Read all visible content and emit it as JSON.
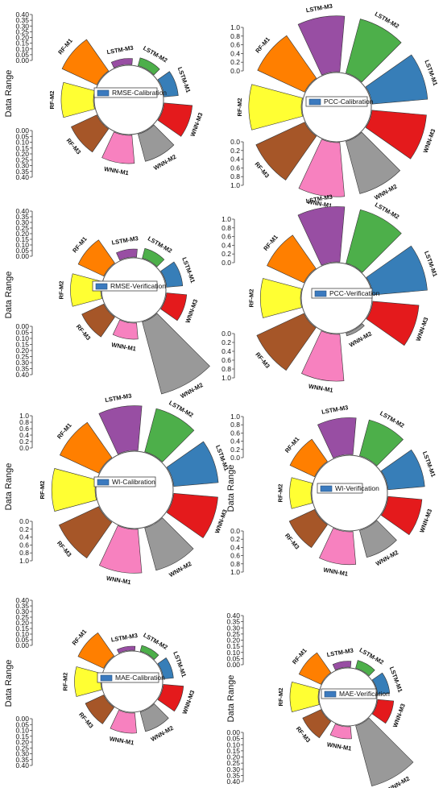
{
  "colors": {
    "LSTM-M3": "#984ea3",
    "LSTM-M2": "#4daf4a",
    "LSTM-M1": "#377eb8",
    "WNN-M3": "#e41a1c",
    "WNN-M2": "#999999",
    "WNN-M1": "#f781bf",
    "RF-M3": "#a65628",
    "RF-M2": "#ffff33",
    "RF-M1": "#ff7f00",
    "legend_swatch": "#3b7abf"
  },
  "chart_data": [
    {
      "type": "radial-bar",
      "legend": "RMSE-Calibration",
      "ylabel": "Data Range",
      "categories": [
        "LSTM-M3",
        "LSTM-M2",
        "LSTM-M1",
        "WNN-M3",
        "WNN-M2",
        "WNN-M1",
        "RF-M3",
        "RF-M2",
        "RF-M1"
      ],
      "values": [
        0.03,
        0.04,
        0.07,
        0.14,
        0.14,
        0.14,
        0.14,
        0.16,
        0.19
      ],
      "top_ticks": [
        "0.40",
        "0.35",
        "0.30",
        "0.25",
        "0.20",
        "0.15",
        "0.10",
        "0.05",
        "0.00"
      ],
      "bottom_ticks": [
        "0.00",
        "0.05",
        "0.10",
        "0.15",
        "0.20",
        "0.25",
        "0.30",
        "0.35",
        "0.40"
      ],
      "ylim": [
        0,
        0.4
      ]
    },
    {
      "type": "radial-bar",
      "legend": "PCC-Calibration",
      "ylabel": "",
      "categories": [
        "LSTM-M3",
        "LSTM-M2",
        "LSTM-M1",
        "WNN-M3",
        "WNN-M2",
        "WNN-M1",
        "RF-M3",
        "RF-M2",
        "RF-M1"
      ],
      "values": [
        0.99,
        0.99,
        0.99,
        0.97,
        0.96,
        0.96,
        0.95,
        0.93,
        0.92
      ],
      "top_ticks": [
        "1.0",
        "0.8",
        "0.6",
        "0.4",
        "0.2",
        "0.0"
      ],
      "bottom_ticks": [
        "0.0",
        "0.2",
        "0.4",
        "0.6",
        "0.8",
        "1.0"
      ],
      "ylim": [
        0,
        1.0
      ]
    },
    {
      "type": "radial-bar",
      "legend": "RMSE-Verification",
      "ylabel": "Data Range",
      "categories": [
        "LSTM-M3",
        "LSTM-M2",
        "LSTM-M1",
        "WNN-M3",
        "WNN-M2",
        "WNN-M1",
        "RF-M3",
        "RF-M2",
        "RF-M1"
      ],
      "values": [
        0.04,
        0.05,
        0.08,
        0.1,
        0.37,
        0.08,
        0.12,
        0.15,
        0.14
      ],
      "top_ticks": [
        "0.40",
        "0.35",
        "0.30",
        "0.25",
        "0.20",
        "0.15",
        "0.10",
        "0.05",
        "0.00"
      ],
      "bottom_ticks": [
        "0.00",
        "0.05",
        "0.10",
        "0.15",
        "0.20",
        "0.25",
        "0.30",
        "0.35",
        "0.40"
      ],
      "ylim": [
        0,
        0.4
      ]
    },
    {
      "type": "radial-bar",
      "legend": "PCC-Verification",
      "ylabel": "",
      "categories": [
        "LSTM-M3",
        "LSTM-M2",
        "LSTM-M1",
        "WNN-M3",
        "WNN-M2",
        "WNN-M1",
        "RF-M3",
        "RF-M2",
        "RF-M1"
      ],
      "values": [
        0.98,
        0.98,
        0.97,
        0.82,
        0.05,
        0.83,
        0.92,
        0.71,
        0.72
      ],
      "top_ticks": [
        "1.0",
        "0.8",
        "0.6",
        "0.4",
        "0.2",
        "0.0"
      ],
      "bottom_ticks": [
        "0.0",
        "0.2",
        "0.4",
        "0.6",
        "0.8",
        "1.0"
      ],
      "ylim": [
        0,
        1.0
      ]
    },
    {
      "type": "radial-bar",
      "legend": "WI-Calibration",
      "ylabel": "Data Range",
      "categories": [
        "LSTM-M3",
        "LSTM-M2",
        "LSTM-M1",
        "WNN-M3",
        "WNN-M2",
        "WNN-M1",
        "RF-M3",
        "RF-M2",
        "RF-M1"
      ],
      "values": [
        0.99,
        0.99,
        0.99,
        0.98,
        0.97,
        0.97,
        0.97,
        0.96,
        0.95
      ],
      "top_ticks": [
        "1.0",
        "0.8",
        "0.6",
        "0.4",
        "0.2",
        "0.0"
      ],
      "bottom_ticks": [
        "0.0",
        "0.2",
        "0.4",
        "0.6",
        "0.8",
        "1.0"
      ],
      "ylim": [
        0,
        1.0
      ]
    },
    {
      "type": "radial-bar",
      "legend": "WI-Verification",
      "ylabel": "Data Range",
      "categories": [
        "LSTM-M3",
        "LSTM-M2",
        "LSTM-M1",
        "WNN-M3",
        "WNN-M2",
        "WNN-M1",
        "RF-M3",
        "RF-M2",
        "RF-M1"
      ],
      "values": [
        0.95,
        0.96,
        0.95,
        0.88,
        0.72,
        0.85,
        0.72,
        0.55,
        0.7
      ],
      "top_ticks": [
        "1.0",
        "0.8",
        "0.6",
        "0.4",
        "0.2",
        "0.0"
      ],
      "bottom_ticks": [
        "0.0",
        "0.2",
        "0.4",
        "0.6",
        "0.8",
        "1.0"
      ],
      "ylim": [
        0,
        1.0
      ]
    },
    {
      "type": "radial-bar",
      "legend": "MAE-Calibration",
      "ylabel": "Data Range",
      "categories": [
        "LSTM-M3",
        "LSTM-M2",
        "LSTM-M1",
        "WNN-M3",
        "WNN-M2",
        "WNN-M1",
        "RF-M3",
        "RF-M2",
        "RF-M1"
      ],
      "values": [
        0.02,
        0.03,
        0.05,
        0.1,
        0.1,
        0.1,
        0.1,
        0.13,
        0.14
      ],
      "top_ticks": [
        "0.40",
        "0.35",
        "0.30",
        "0.25",
        "0.20",
        "0.15",
        "0.10",
        "0.05",
        "0.00"
      ],
      "bottom_ticks": [
        "0.00",
        "0.05",
        "0.10",
        "0.15",
        "0.20",
        "0.25",
        "0.30",
        "0.35",
        "0.40"
      ],
      "ylim": [
        0,
        0.4
      ]
    },
    {
      "type": "radial-bar",
      "legend": "MAE-Verification",
      "ylabel": "Data Range",
      "categories": [
        "LSTM-M3",
        "LSTM-M2",
        "LSTM-M1",
        "WNN-M3",
        "WNN-M2",
        "WNN-M1",
        "RF-M3",
        "RF-M2",
        "RF-M1"
      ],
      "values": [
        0.03,
        0.04,
        0.06,
        0.08,
        0.31,
        0.06,
        0.1,
        0.14,
        0.12
      ],
      "top_ticks": [
        "0.40",
        "0.35",
        "0.30",
        "0.25",
        "0.20",
        "0.15",
        "0.10",
        "0.05",
        "0.00"
      ],
      "bottom_ticks": [
        "0.00",
        "0.05",
        "0.10",
        "0.15",
        "0.20",
        "0.25",
        "0.30",
        "0.35",
        "0.40"
      ],
      "ylim": [
        0,
        0.4
      ]
    }
  ]
}
